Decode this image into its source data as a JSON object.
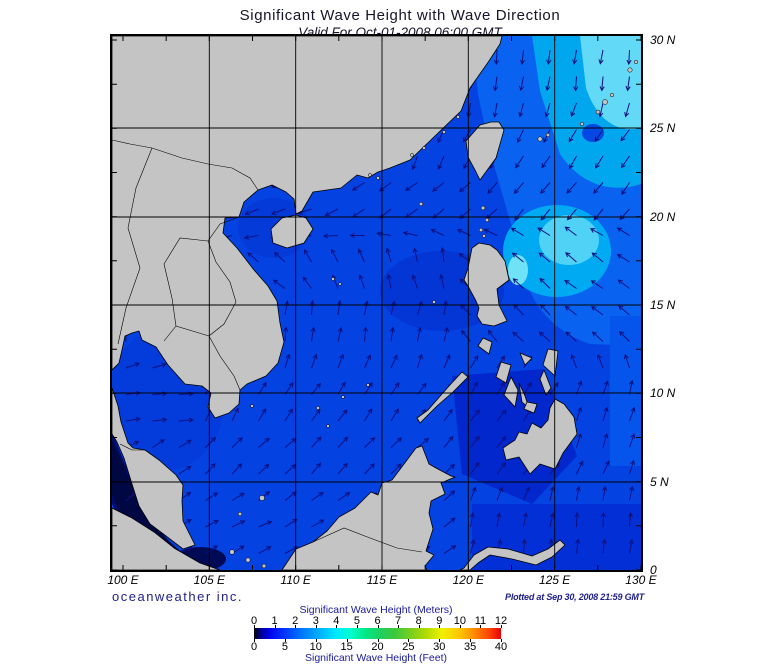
{
  "header": {
    "title": "Significant Wave Height with Wave Direction",
    "subtitle": "Valid For Oct-01-2008 06:00 GMT"
  },
  "map": {
    "x_axis": {
      "labels": [
        "100 E",
        "105 E",
        "110 E",
        "115 E",
        "120 E",
        "125 E",
        "130 E"
      ]
    },
    "y_axis": {
      "labels": [
        "30 N",
        "25 N",
        "20 N",
        "15 N",
        "10 N",
        "5 N",
        "0"
      ]
    },
    "grid_degrees": 5
  },
  "branding": {
    "company": "oceanweather inc.",
    "plotted": "Plotted at Sep 30, 2008 21:59 GMT"
  },
  "colorbar": {
    "title_meters": "Significant Wave Height (Meters)",
    "title_feet": "Significant Wave Height (Feet)",
    "meters_ticks": [
      "0",
      "1",
      "2",
      "3",
      "4",
      "5",
      "6",
      "7",
      "8",
      "9",
      "10",
      "11",
      "12"
    ],
    "feet_ticks": [
      "0",
      "5",
      "10",
      "15",
      "20",
      "25",
      "30",
      "35",
      "40"
    ],
    "gradient_stops": [
      [
        "#000000",
        0
      ],
      [
        "#00008c",
        2.5
      ],
      [
        "#0000e8",
        6
      ],
      [
        "#0033ff",
        12
      ],
      [
        "#007cff",
        20
      ],
      [
        "#00b4ff",
        27
      ],
      [
        "#00e8ff",
        33
      ],
      [
        "#00ffd0",
        39
      ],
      [
        "#00e888",
        45
      ],
      [
        "#1ed060",
        51
      ],
      [
        "#3cc83c",
        57
      ],
      [
        "#7cd01e",
        64
      ],
      [
        "#b4dc00",
        70
      ],
      [
        "#f0f000",
        76
      ],
      [
        "#ffc800",
        83
      ],
      [
        "#ff8c00",
        89
      ],
      [
        "#ff4600",
        95
      ],
      [
        "#e80000",
        100
      ]
    ]
  },
  "colors": {
    "land": "#c4c4c4",
    "sea_base": "#0442e2",
    "navy_text": "#20208a",
    "colorbar_title": "#1a1a9c",
    "grid": "#000000"
  },
  "wave_field": {
    "arrow_color": "#101080",
    "angles": [
      [
        262,
        262,
        262,
        262,
        262,
        262,
        262,
        262,
        262,
        262,
        262,
        262
      ],
      [
        258,
        258,
        258,
        258,
        258,
        258,
        258,
        258,
        258,
        256,
        254,
        252
      ],
      [
        250,
        250,
        250,
        250,
        250,
        248,
        246,
        244,
        242,
        240,
        238,
        236
      ],
      [
        205,
        205,
        200,
        200,
        200,
        210,
        215,
        220,
        225,
        228,
        230,
        232
      ],
      [
        195,
        195,
        195,
        193,
        190,
        180,
        172,
        160,
        152,
        150,
        148,
        146
      ],
      [
        160,
        155,
        150,
        140,
        125,
        112,
        105,
        100,
        138,
        140,
        142,
        144
      ],
      [
        90,
        88,
        85,
        85,
        83,
        80,
        78,
        76,
        132,
        135,
        137,
        139
      ],
      [
        15,
        15,
        70,
        70,
        70,
        70,
        70,
        65,
        60,
        60,
        108,
        110
      ],
      [
        8,
        8,
        60,
        58,
        56,
        55,
        55,
        55,
        55,
        55,
        73,
        75
      ],
      [
        30,
        28,
        45,
        45,
        45,
        45,
        45,
        46,
        50,
        50,
        68,
        70
      ],
      [
        35,
        35,
        35,
        35,
        35,
        35,
        35,
        40,
        70,
        72,
        78,
        80
      ],
      [
        30,
        30,
        28,
        28,
        28,
        30,
        30,
        35,
        80,
        82,
        84,
        85
      ]
    ]
  }
}
